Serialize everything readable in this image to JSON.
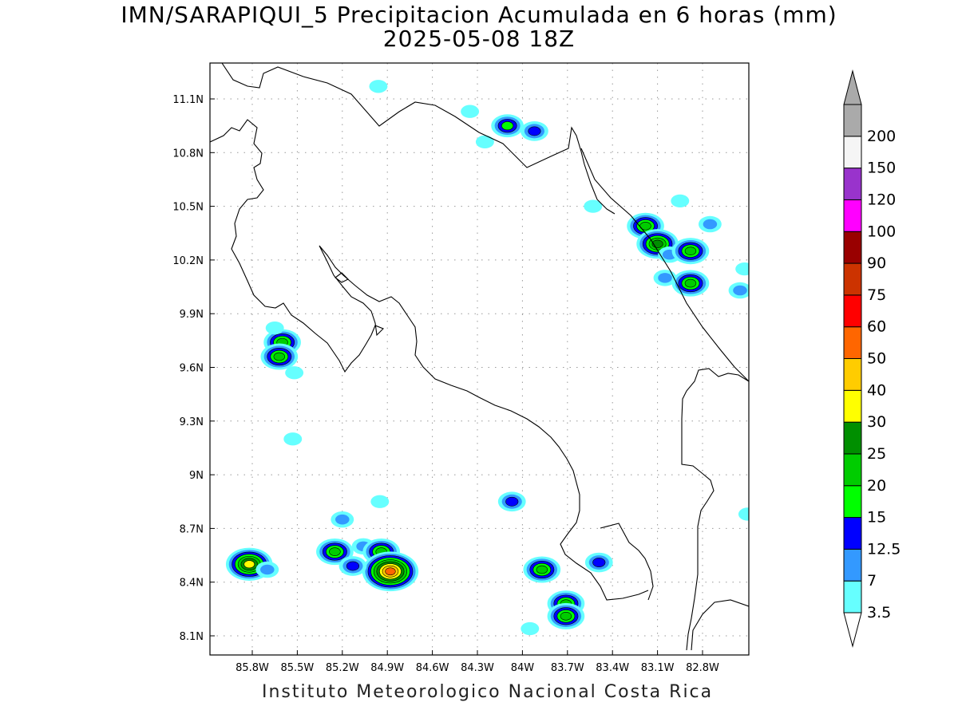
{
  "title": {
    "line1": "IMN/SARAPIQUI_5 Precipitacion Acumulada en 6 horas (mm)",
    "line2": "2025-05-08 18Z"
  },
  "footer": "Instituto Meteorologico Nacional Costa Rica",
  "map": {
    "lon_range": [
      -86.05,
      -82.5
    ],
    "lat_range": [
      8.0,
      11.3
    ],
    "lon_ticks": [
      {
        "value": -85.8,
        "label": "85.8W"
      },
      {
        "value": -85.5,
        "label": "85.5W"
      },
      {
        "value": -85.2,
        "label": "85.2W"
      },
      {
        "value": -84.9,
        "label": "84.9W"
      },
      {
        "value": -84.6,
        "label": "84.6W"
      },
      {
        "value": -84.3,
        "label": "84.3W"
      },
      {
        "value": -84.0,
        "label": "84W"
      },
      {
        "value": -83.7,
        "label": "83.7W"
      },
      {
        "value": -83.4,
        "label": "83.4W"
      },
      {
        "value": -83.1,
        "label": "83.1W"
      },
      {
        "value": -82.8,
        "label": "82.8W"
      }
    ],
    "lat_ticks": [
      {
        "value": 11.1,
        "label": "11.1N"
      },
      {
        "value": 10.8,
        "label": "10.8N"
      },
      {
        "value": 10.5,
        "label": "10.5N"
      },
      {
        "value": 10.2,
        "label": "10.2N"
      },
      {
        "value": 9.9,
        "label": "9.9N"
      },
      {
        "value": 9.6,
        "label": "9.6N"
      },
      {
        "value": 9.3,
        "label": "9.3N"
      },
      {
        "value": 9.0,
        "label": "9N"
      },
      {
        "value": 8.7,
        "label": "8.7N"
      },
      {
        "value": 8.4,
        "label": "8.4N"
      },
      {
        "value": 8.1,
        "label": "8.1N"
      }
    ],
    "grid": "dotted"
  },
  "legend": {
    "levels": [
      {
        "label": "3.5",
        "color": "#66ffff"
      },
      {
        "label": "7",
        "color": "#3399ff"
      },
      {
        "label": "12.5",
        "color": "#0000ff"
      },
      {
        "label": "15",
        "color": "#00ff00"
      },
      {
        "label": "20",
        "color": "#00cc00"
      },
      {
        "label": "25",
        "color": "#008f00"
      },
      {
        "label": "30",
        "color": "#ffff00"
      },
      {
        "label": "40",
        "color": "#ffcc00"
      },
      {
        "label": "50",
        "color": "#ff6600"
      },
      {
        "label": "60",
        "color": "#ff0000"
      },
      {
        "label": "75",
        "color": "#cc3300"
      },
      {
        "label": "90",
        "color": "#990000"
      },
      {
        "label": "100",
        "color": "#ff00ff"
      },
      {
        "label": "120",
        "color": "#9933cc"
      },
      {
        "label": "150",
        "color": "#f5f5f5"
      },
      {
        "label": "200",
        "color": "#aaaaaa"
      }
    ]
  },
  "precip_cells": [
    {
      "lon": -84.96,
      "lat": 11.17,
      "peak": "3.5"
    },
    {
      "lon": -84.1,
      "lat": 10.95,
      "peak": "15"
    },
    {
      "lon": -83.92,
      "lat": 10.92,
      "peak": "12.5"
    },
    {
      "lon": -84.35,
      "lat": 11.03,
      "peak": "3.5"
    },
    {
      "lon": -84.25,
      "lat": 10.86,
      "peak": "3.5"
    },
    {
      "lon": -83.53,
      "lat": 10.5,
      "peak": "3.5"
    },
    {
      "lon": -83.18,
      "lat": 10.39,
      "peak": "20"
    },
    {
      "lon": -83.1,
      "lat": 10.29,
      "peak": "25"
    },
    {
      "lon": -83.02,
      "lat": 10.23,
      "peak": "7"
    },
    {
      "lon": -82.88,
      "lat": 10.25,
      "peak": "20"
    },
    {
      "lon": -82.95,
      "lat": 10.53,
      "peak": "3.5"
    },
    {
      "lon": -82.75,
      "lat": 10.4,
      "peak": "7"
    },
    {
      "lon": -82.88,
      "lat": 10.07,
      "peak": "20"
    },
    {
      "lon": -83.05,
      "lat": 10.1,
      "peak": "7"
    },
    {
      "lon": -82.55,
      "lat": 10.03,
      "peak": "7"
    },
    {
      "lon": -82.52,
      "lat": 10.15,
      "peak": "3.5"
    },
    {
      "lon": -85.6,
      "lat": 9.74,
      "peak": "20"
    },
    {
      "lon": -85.62,
      "lat": 9.66,
      "peak": "20"
    },
    {
      "lon": -85.65,
      "lat": 9.82,
      "peak": "3.5"
    },
    {
      "lon": -85.52,
      "lat": 9.57,
      "peak": "3.5"
    },
    {
      "lon": -85.53,
      "lat": 9.2,
      "peak": "3.5"
    },
    {
      "lon": -84.07,
      "lat": 8.85,
      "peak": "12.5"
    },
    {
      "lon": -82.5,
      "lat": 8.78,
      "peak": "3.5"
    },
    {
      "lon": -85.82,
      "lat": 8.5,
      "peak": "30"
    },
    {
      "lon": -85.7,
      "lat": 8.47,
      "peak": "7"
    },
    {
      "lon": -85.25,
      "lat": 8.57,
      "peak": "20"
    },
    {
      "lon": -85.06,
      "lat": 8.6,
      "peak": "7"
    },
    {
      "lon": -84.94,
      "lat": 8.57,
      "peak": "20"
    },
    {
      "lon": -84.88,
      "lat": 8.46,
      "peak": "50"
    },
    {
      "lon": -85.13,
      "lat": 8.49,
      "peak": "12.5"
    },
    {
      "lon": -83.87,
      "lat": 8.47,
      "peak": "20"
    },
    {
      "lon": -83.71,
      "lat": 8.28,
      "peak": "20"
    },
    {
      "lon": -83.71,
      "lat": 8.21,
      "peak": "20"
    },
    {
      "lon": -83.49,
      "lat": 8.51,
      "peak": "12.5"
    },
    {
      "lon": -83.95,
      "lat": 8.14,
      "peak": "3.5"
    },
    {
      "lon": -85.2,
      "lat": 8.75,
      "peak": "7"
    },
    {
      "lon": -84.95,
      "lat": 8.85,
      "peak": "3.5"
    }
  ]
}
